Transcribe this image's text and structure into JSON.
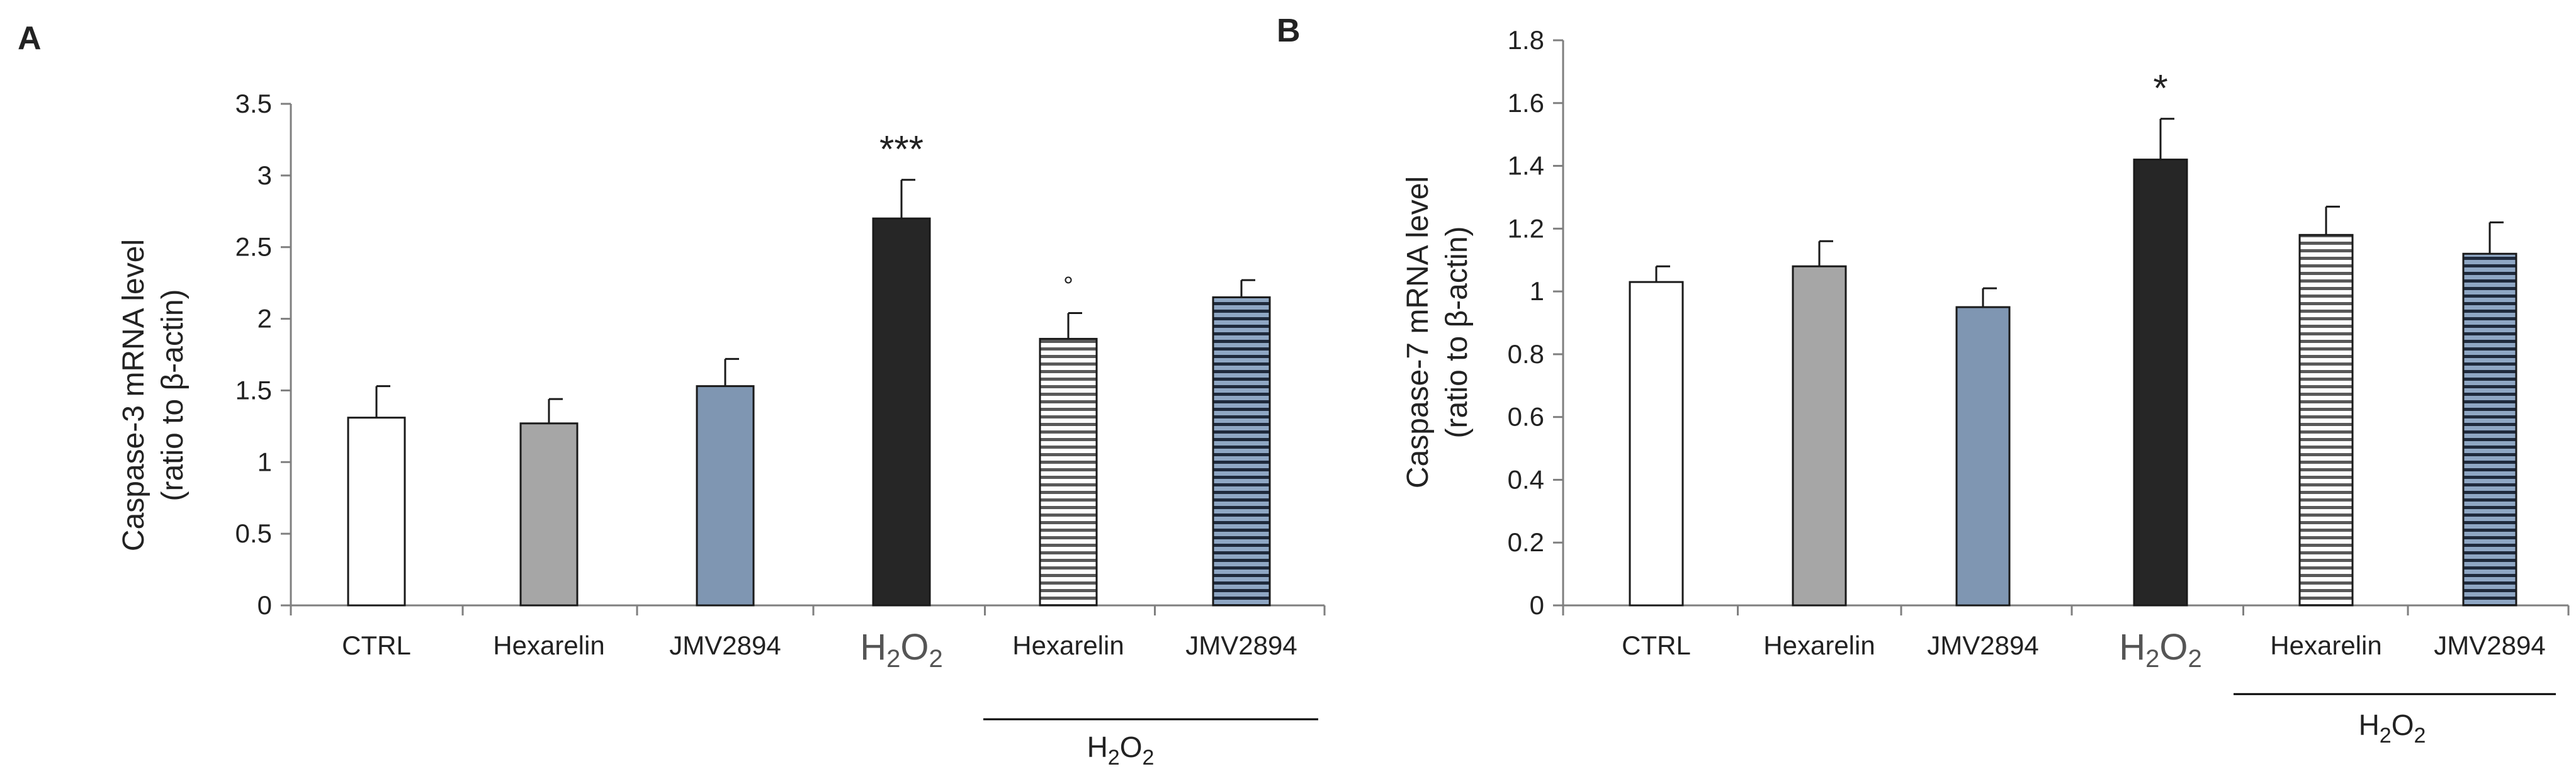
{
  "colors": {
    "ctrl": "#ffffff",
    "hexarelin": "#a6a6a6",
    "jmv2894": "#7f96b2",
    "h2o2": "#262626",
    "stripe_hex_bg": "#ffffff",
    "stripe_hex_line": "#595959",
    "stripe_jmv_bg": "#8fa7c4",
    "stripe_jmv_line": "#1f2a3c",
    "axis": "#7f7f7f",
    "outline": "#1a1a1a"
  },
  "group_label": {
    "main": "H",
    "sub": "2",
    "end": "O",
    "sub2": "2"
  },
  "chart_data": [
    {
      "panel": "A",
      "type": "bar",
      "ylabel_line1": "Caspase-3 mRNA level",
      "ylabel_line2": "(ratio to β-actin)",
      "ylim": [
        0,
        3.5
      ],
      "yticks": [
        "0",
        "0.5",
        "1",
        "1.5",
        "2",
        "2.5",
        "3",
        "3.5"
      ],
      "categories": [
        "CTRL",
        "Hexarelin",
        "JMV2894",
        "H2O2",
        "Hexarelin",
        "JMV2894"
      ],
      "values": [
        1.31,
        1.27,
        1.53,
        2.7,
        1.86,
        2.15
      ],
      "errors": [
        0.22,
        0.17,
        0.19,
        0.27,
        0.18,
        0.12
      ],
      "fills": [
        "ctrl",
        "hexarelin",
        "jmv2894",
        "h2o2",
        "stripe-hex",
        "stripe-jmv"
      ],
      "annotations": [
        "",
        "",
        "",
        "***",
        "°",
        ""
      ]
    },
    {
      "panel": "B",
      "type": "bar",
      "ylabel_line1": "Caspase-7 mRNA level",
      "ylabel_line2": "(ratio to β-actin)",
      "ylim": [
        0,
        1.8
      ],
      "yticks": [
        "0",
        "0.2",
        "0.4",
        "0.6",
        "0.8",
        "1",
        "1.2",
        "1.4",
        "1.6",
        "1.8"
      ],
      "categories": [
        "CTRL",
        "Hexarelin",
        "JMV2894",
        "H2O2",
        "Hexarelin",
        "JMV2894"
      ],
      "values": [
        1.03,
        1.08,
        0.95,
        1.42,
        1.18,
        1.12
      ],
      "errors": [
        0.05,
        0.08,
        0.06,
        0.13,
        0.09,
        0.1
      ],
      "fills": [
        "ctrl",
        "hexarelin",
        "jmv2894",
        "h2o2",
        "stripe-hex",
        "stripe-jmv"
      ],
      "annotations": [
        "",
        "",
        "",
        "*",
        "",
        ""
      ]
    }
  ]
}
